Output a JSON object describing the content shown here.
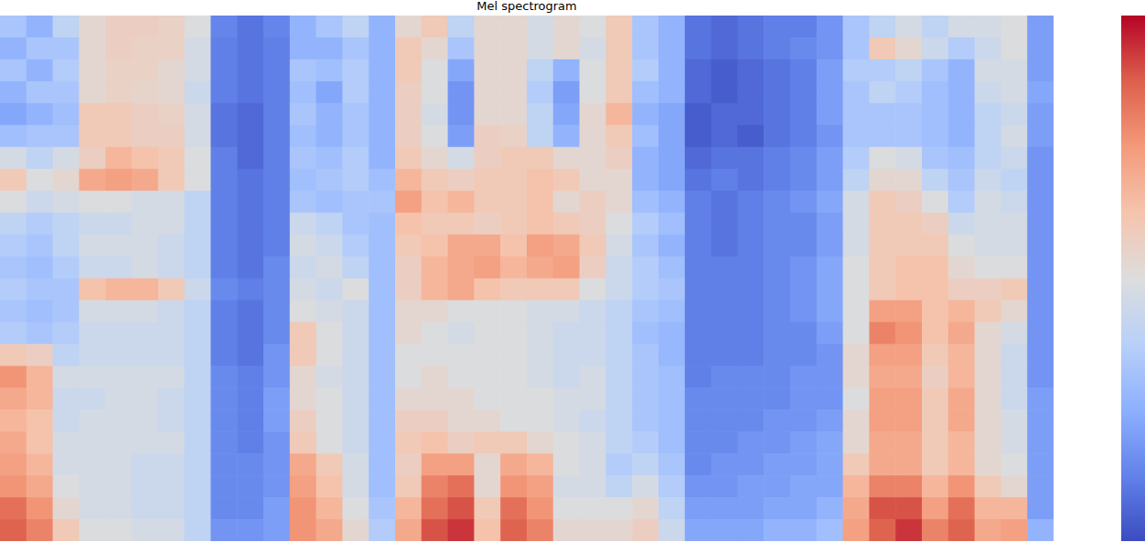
{
  "chart_data": {
    "type": "heatmap",
    "title": "Mel spectrogram",
    "tick_labels": false,
    "colorbar_range": [
      -75,
      0
    ],
    "cells": [
      [
        -50,
        -55,
        -45,
        -35,
        -32,
        -32,
        -33,
        -38,
        -65,
        -68,
        -65,
        -55,
        -50,
        -45,
        -55,
        -35,
        -30,
        -45,
        -35,
        -35,
        -40,
        -35,
        -38,
        -30,
        -50,
        -55,
        -68,
        -70,
        -68,
        -66,
        -66,
        -62,
        -50,
        -45,
        -40,
        -45,
        -40,
        -40,
        -38,
        -60
      ],
      [
        -55,
        -50,
        -50,
        -35,
        -32,
        -33,
        -33,
        -40,
        -66,
        -68,
        -66,
        -55,
        -55,
        -50,
        -55,
        -30,
        -35,
        -50,
        -35,
        -35,
        -40,
        -35,
        -40,
        -30,
        -50,
        -55,
        -68,
        -70,
        -68,
        -66,
        -64,
        -62,
        -50,
        -30,
        -35,
        -42,
        -48,
        -42,
        -38,
        -60
      ],
      [
        -50,
        -55,
        -48,
        -35,
        -33,
        -33,
        -35,
        -40,
        -66,
        -68,
        -66,
        -50,
        -52,
        -48,
        -55,
        -30,
        -38,
        -58,
        -35,
        -35,
        -45,
        -55,
        -38,
        -30,
        -48,
        -55,
        -70,
        -72,
        -70,
        -68,
        -66,
        -60,
        -48,
        -48,
        -45,
        -50,
        -55,
        -40,
        -40,
        -60
      ],
      [
        -55,
        -50,
        -50,
        -35,
        -33,
        -34,
        -35,
        -42,
        -66,
        -68,
        -66,
        -52,
        -58,
        -48,
        -55,
        -32,
        -38,
        -62,
        -35,
        -35,
        -48,
        -60,
        -38,
        -30,
        -52,
        -55,
        -70,
        -72,
        -70,
        -68,
        -66,
        -60,
        -50,
        -45,
        -48,
        -52,
        -55,
        -42,
        -40,
        -58
      ],
      [
        -58,
        -55,
        -52,
        -30,
        -30,
        -32,
        -33,
        -40,
        -68,
        -70,
        -66,
        -50,
        -55,
        -50,
        -55,
        -32,
        -40,
        -62,
        -35,
        -35,
        -45,
        -58,
        -35,
        -25,
        -55,
        -58,
        -72,
        -70,
        -70,
        -68,
        -66,
        -60,
        -50,
        -50,
        -50,
        -52,
        -55,
        -45,
        -42,
        -60
      ],
      [
        -52,
        -50,
        -50,
        -30,
        -30,
        -32,
        -32,
        -40,
        -68,
        -70,
        -66,
        -52,
        -55,
        -50,
        -55,
        -32,
        -38,
        -60,
        -32,
        -33,
        -45,
        -55,
        -35,
        -30,
        -52,
        -58,
        -72,
        -70,
        -72,
        -68,
        -66,
        -62,
        -50,
        -50,
        -50,
        -52,
        -55,
        -45,
        -40,
        -60
      ],
      [
        -40,
        -45,
        -40,
        -32,
        -25,
        -28,
        -30,
        -38,
        -66,
        -70,
        -66,
        -50,
        -52,
        -48,
        -55,
        -30,
        -35,
        -40,
        -32,
        -30,
        -30,
        -35,
        -35,
        -32,
        -55,
        -58,
        -70,
        -68,
        -68,
        -66,
        -64,
        -60,
        -48,
        -38,
        -40,
        -50,
        -52,
        -45,
        -42,
        -62
      ],
      [
        -30,
        -38,
        -35,
        -22,
        -20,
        -22,
        -30,
        -38,
        -66,
        -68,
        -66,
        -52,
        -50,
        -48,
        -52,
        -25,
        -30,
        -32,
        -30,
        -30,
        -28,
        -30,
        -35,
        -35,
        -55,
        -58,
        -68,
        -66,
        -68,
        -66,
        -64,
        -60,
        -45,
        -35,
        -35,
        -45,
        -50,
        -42,
        -45,
        -62
      ],
      [
        -38,
        -42,
        -40,
        -38,
        -38,
        -40,
        -40,
        -45,
        -66,
        -68,
        -66,
        -50,
        -52,
        -50,
        -50,
        -20,
        -28,
        -25,
        -30,
        -30,
        -28,
        -35,
        -32,
        -35,
        -52,
        -55,
        -66,
        -68,
        -66,
        -64,
        -62,
        -58,
        -40,
        -30,
        -32,
        -38,
        -48,
        -40,
        -42,
        -62
      ],
      [
        -45,
        -48,
        -45,
        -42,
        -42,
        -40,
        -40,
        -45,
        -66,
        -68,
        -66,
        -42,
        -45,
        -50,
        -52,
        -28,
        -30,
        -30,
        -32,
        -30,
        -28,
        -30,
        -32,
        -38,
        -48,
        -52,
        -66,
        -68,
        -66,
        -64,
        -64,
        -60,
        -40,
        -30,
        -30,
        -32,
        -42,
        -40,
        -40,
        -62
      ],
      [
        -48,
        -50,
        -45,
        -40,
        -40,
        -40,
        -42,
        -45,
        -66,
        -68,
        -66,
        -40,
        -42,
        -48,
        -52,
        -30,
        -28,
        -22,
        -22,
        -28,
        -20,
        -22,
        -30,
        -40,
        -50,
        -55,
        -66,
        -68,
        -66,
        -64,
        -64,
        -60,
        -40,
        -30,
        -30,
        -30,
        -38,
        -40,
        -40,
        -62
      ],
      [
        -50,
        -52,
        -48,
        -42,
        -42,
        -40,
        -42,
        -45,
        -66,
        -68,
        -64,
        -42,
        -40,
        -45,
        -52,
        -32,
        -25,
        -22,
        -20,
        -25,
        -22,
        -20,
        -32,
        -42,
        -48,
        -52,
        -66,
        -66,
        -66,
        -64,
        -62,
        -58,
        -38,
        -30,
        -28,
        -28,
        -35,
        -38,
        -38,
        -62
      ],
      [
        -48,
        -50,
        -50,
        -28,
        -25,
        -25,
        -30,
        -42,
        -64,
        -66,
        -64,
        -40,
        -42,
        -38,
        -52,
        -32,
        -25,
        -22,
        -28,
        -30,
        -30,
        -30,
        -38,
        -42,
        -48,
        -50,
        -66,
        -66,
        -66,
        -64,
        -62,
        -58,
        -38,
        -30,
        -28,
        -28,
        -32,
        -32,
        -30,
        -62
      ],
      [
        -50,
        -52,
        -50,
        -40,
        -40,
        -40,
        -42,
        -45,
        -66,
        -68,
        -64,
        -38,
        -40,
        -42,
        -52,
        -35,
        -35,
        -38,
        -38,
        -38,
        -40,
        -40,
        -42,
        -45,
        -50,
        -52,
        -66,
        -66,
        -66,
        -64,
        -62,
        -58,
        -38,
        -20,
        -20,
        -28,
        -25,
        -30,
        -35,
        -62
      ],
      [
        -48,
        -50,
        -48,
        -42,
        -42,
        -42,
        -42,
        -45,
        -66,
        -68,
        -64,
        -30,
        -38,
        -42,
        -52,
        -35,
        -38,
        -40,
        -38,
        -38,
        -40,
        -42,
        -42,
        -45,
        -52,
        -54,
        -66,
        -66,
        -66,
        -64,
        -64,
        -60,
        -38,
        -15,
        -18,
        -28,
        -22,
        -35,
        -40,
        -62
      ],
      [
        -30,
        -32,
        -45,
        -42,
        -42,
        -42,
        -42,
        -45,
        -66,
        -68,
        -62,
        -30,
        -38,
        -42,
        -52,
        -38,
        -38,
        -38,
        -38,
        -38,
        -40,
        -42,
        -42,
        -45,
        -50,
        -54,
        -66,
        -66,
        -66,
        -64,
        -64,
        -62,
        -35,
        -20,
        -20,
        -30,
        -25,
        -35,
        -42,
        -62
      ],
      [
        -18,
        -25,
        -40,
        -40,
        -40,
        -40,
        -40,
        -45,
        -64,
        -66,
        -62,
        -35,
        -40,
        -42,
        -52,
        -38,
        -35,
        -38,
        -38,
        -38,
        -40,
        -42,
        -40,
        -45,
        -50,
        -52,
        -66,
        -64,
        -64,
        -64,
        -62,
        -62,
        -35,
        -22,
        -22,
        -32,
        -25,
        -35,
        -42,
        -62
      ],
      [
        -22,
        -25,
        -42,
        -42,
        -40,
        -40,
        -42,
        -45,
        -64,
        -66,
        -60,
        -35,
        -38,
        -42,
        -52,
        -35,
        -35,
        -35,
        -38,
        -38,
        -38,
        -40,
        -40,
        -45,
        -50,
        -52,
        -64,
        -64,
        -64,
        -64,
        -62,
        -62,
        -38,
        -20,
        -20,
        -30,
        -22,
        -35,
        -42,
        -60
      ],
      [
        -25,
        -28,
        -42,
        -40,
        -40,
        -40,
        -42,
        -45,
        -64,
        -66,
        -60,
        -32,
        -38,
        -42,
        -52,
        -32,
        -32,
        -35,
        -35,
        -38,
        -38,
        -40,
        -42,
        -45,
        -50,
        -52,
        -64,
        -64,
        -64,
        -62,
        -62,
        -60,
        -35,
        -20,
        -20,
        -30,
        -22,
        -35,
        -40,
        -60
      ],
      [
        -22,
        -28,
        -40,
        -40,
        -40,
        -40,
        -40,
        -45,
        -64,
        -66,
        -62,
        -30,
        -38,
        -42,
        -52,
        -30,
        -28,
        -32,
        -30,
        -30,
        -35,
        -38,
        -40,
        -45,
        -48,
        -52,
        -64,
        -64,
        -62,
        -62,
        -60,
        -58,
        -35,
        -22,
        -22,
        -30,
        -25,
        -35,
        -40,
        -60
      ],
      [
        -20,
        -25,
        -40,
        -40,
        -40,
        -42,
        -42,
        -45,
        -64,
        -64,
        -62,
        -22,
        -30,
        -40,
        -52,
        -32,
        -20,
        -20,
        -35,
        -22,
        -25,
        -38,
        -40,
        -48,
        -45,
        -50,
        -64,
        -62,
        -62,
        -60,
        -60,
        -58,
        -30,
        -22,
        -22,
        -30,
        -25,
        -35,
        -38,
        -60
      ],
      [
        -18,
        -22,
        -38,
        -40,
        -40,
        -42,
        -42,
        -45,
        -64,
        -64,
        -62,
        -20,
        -28,
        -40,
        -52,
        -30,
        -15,
        -12,
        -35,
        -18,
        -20,
        -40,
        -40,
        -45,
        -40,
        -48,
        -62,
        -62,
        -60,
        -60,
        -58,
        -58,
        -25,
        -15,
        -15,
        -25,
        -18,
        -30,
        -35,
        -60
      ],
      [
        -12,
        -18,
        -35,
        -40,
        -40,
        -42,
        -42,
        -45,
        -64,
        -64,
        -60,
        -18,
        -25,
        -38,
        -50,
        -25,
        -12,
        -8,
        -30,
        -12,
        -18,
        -38,
        -38,
        -38,
        -35,
        -45,
        -60,
        -60,
        -60,
        -58,
        -58,
        -55,
        -22,
        -8,
        -8,
        -20,
        -12,
        -25,
        -25,
        -60
      ],
      [
        -10,
        -15,
        -30,
        -38,
        -38,
        -40,
        -40,
        -45,
        -62,
        -62,
        -60,
        -18,
        -22,
        -35,
        -48,
        -22,
        -8,
        -5,
        -28,
        -10,
        -15,
        -35,
        -35,
        -35,
        -32,
        -42,
        -58,
        -58,
        -58,
        -55,
        -55,
        -52,
        -20,
        -10,
        -5,
        -15,
        -10,
        -22,
        -20,
        -55
      ]
    ]
  }
}
